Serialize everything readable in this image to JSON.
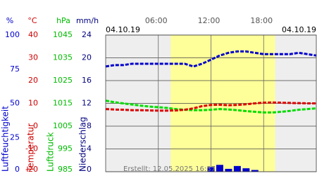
{
  "chart_data": {
    "type": "multi-axis-line",
    "date_left": "04.10.19",
    "date_right": "04.10.19",
    "footer": "Erstellt: 12.05.2025 16:37",
    "xlim": [
      0,
      24
    ],
    "xticks": [
      {
        "value": 6,
        "label": "06:00"
      },
      {
        "value": 12,
        "label": "12:00"
      },
      {
        "value": 18,
        "label": "18:00"
      }
    ],
    "daylight": [
      7.4,
      19.3
    ],
    "y_axes": [
      {
        "unit": "%",
        "title": "Luftfeuchtigkeit",
        "color": "#0000cc",
        "ylim": [
          0,
          100
        ],
        "yticks": [
          0,
          25,
          50,
          75,
          100
        ]
      },
      {
        "unit": "°C",
        "title": "Temperatur",
        "color": "#cc0000",
        "ylim": [
          -20,
          40
        ],
        "yticks": [
          -20,
          -10,
          0,
          10,
          20,
          30,
          40
        ]
      },
      {
        "unit": "hPa",
        "title": "Luftdruck",
        "color": "#00bb00",
        "ylim": [
          985,
          1045
        ],
        "yticks": [
          985,
          995,
          1005,
          1015,
          1025,
          1035,
          1045
        ]
      },
      {
        "unit": "mm/h",
        "title": "Niederschlag",
        "color": "#000080",
        "ylim": [
          0,
          24
        ],
        "yticks": [
          0,
          4,
          8,
          12,
          16,
          20,
          24
        ]
      }
    ],
    "x": [
      0,
      1,
      2,
      3,
      4,
      5,
      6,
      7,
      8,
      9,
      10,
      11,
      12,
      13,
      14,
      15,
      16,
      17,
      18,
      19,
      20,
      21,
      22,
      23,
      24
    ],
    "series": [
      {
        "kind": "line",
        "axis": 2,
        "color": "#00dd00",
        "values": [
          1016.2,
          1015.5,
          1015,
          1014.5,
          1014,
          1013.6,
          1013.3,
          1013,
          1012.5,
          1012.2,
          1012,
          1012,
          1012.2,
          1012.5,
          1012.3,
          1012,
          1011.6,
          1011.3,
          1011,
          1011,
          1011.3,
          1011.7,
          1012.2,
          1012.5,
          1012.8
        ]
      },
      {
        "kind": "line",
        "axis": 1,
        "color": "#dd0000",
        "values": [
          7.5,
          7.3,
          7.2,
          7.0,
          7.0,
          6.9,
          6.8,
          6.8,
          6.9,
          7.2,
          7.8,
          8.8,
          9.3,
          9.4,
          9.2,
          9.3,
          9.6,
          10.0,
          10.3,
          10.4,
          10.3,
          10.2,
          10.1,
          10.0,
          10.0
        ]
      },
      {
        "kind": "line",
        "axis": 0,
        "color": "#0000cc",
        "values": [
          77,
          78,
          78,
          79,
          79,
          79,
          79,
          79,
          79,
          79,
          77,
          79,
          82,
          85,
          87,
          88,
          88,
          87,
          86,
          86,
          86,
          86,
          87,
          86,
          85
        ]
      },
      {
        "kind": "bar",
        "axis": 3,
        "color": "#0000cc",
        "values": [
          0,
          0,
          0,
          0,
          0,
          0,
          0,
          0,
          0,
          0,
          0,
          0,
          0.8,
          1.2,
          0.5,
          1.0,
          0.6,
          0.3,
          0,
          0,
          0,
          0,
          0,
          0,
          0
        ]
      }
    ]
  }
}
